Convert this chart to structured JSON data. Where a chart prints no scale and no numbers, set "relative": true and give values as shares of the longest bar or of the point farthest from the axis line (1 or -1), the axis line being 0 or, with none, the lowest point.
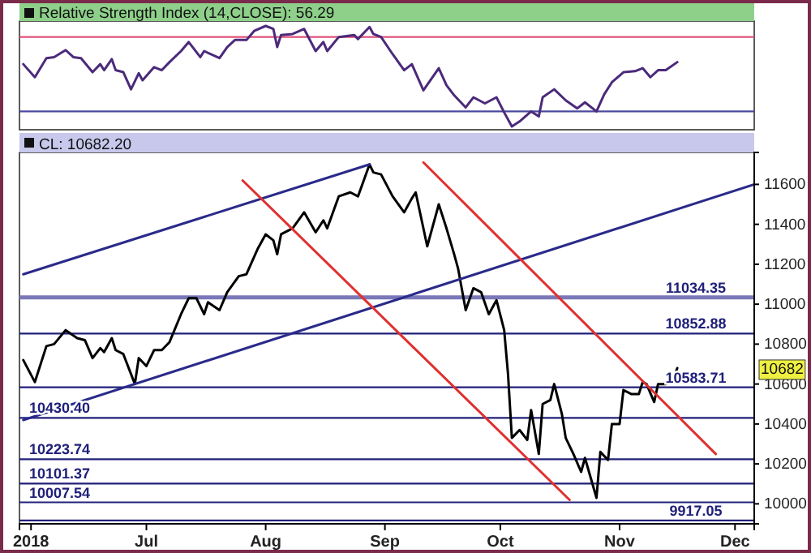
{
  "chart_data": [
    {
      "type": "line",
      "title": "Relative Strength Index (14,CLOSE): 56.29",
      "relative": true,
      "xlim": [
        "2018-05-29",
        "2018-12-06"
      ],
      "ref_lines": [
        {
          "axis": "y",
          "value": 0.89,
          "color": "#e0507a"
        },
        {
          "axis": "y",
          "value": 0.15,
          "color": "#4a4aa0"
        }
      ],
      "series": [
        {
          "color": "#4b2a7a",
          "x": [
            "2018-05-30",
            "2018-06-02",
            "2018-06-05",
            "2018-06-07",
            "2018-06-10",
            "2018-06-12",
            "2018-06-14",
            "2018-06-17",
            "2018-06-19",
            "2018-06-20",
            "2018-06-22",
            "2018-06-23",
            "2018-06-25",
            "2018-06-27",
            "2018-06-29",
            "2018-06-30",
            "2018-07-03",
            "2018-07-05",
            "2018-07-07",
            "2018-07-10",
            "2018-07-12",
            "2018-07-15",
            "2018-07-16",
            "2018-07-20",
            "2018-07-22",
            "2018-07-24",
            "2018-07-27",
            "2018-07-29",
            "2018-08-01",
            "2018-08-03",
            "2018-08-04",
            "2018-08-05",
            "2018-08-08",
            "2018-08-11",
            "2018-08-14",
            "2018-08-16",
            "2018-08-17",
            "2018-08-20",
            "2018-08-24",
            "2018-08-25",
            "2018-08-28",
            "2018-08-29",
            "2018-08-31",
            "2018-09-03",
            "2018-09-06",
            "2018-09-08",
            "2018-09-11",
            "2018-09-15",
            "2018-09-17",
            "2018-09-19",
            "2018-09-22",
            "2018-09-24",
            "2018-09-27",
            "2018-09-30",
            "2018-10-02",
            "2018-10-04",
            "2018-10-06",
            "2018-10-09",
            "2018-10-11",
            "2018-10-12",
            "2018-10-15",
            "2018-10-18",
            "2018-10-21",
            "2018-10-23",
            "2018-10-26",
            "2018-10-28",
            "2018-10-30",
            "2018-11-02",
            "2018-11-05",
            "2018-11-07",
            "2018-11-09",
            "2018-11-11",
            "2018-11-13",
            "2018-11-16"
          ],
          "values": [
            0.62,
            0.49,
            0.68,
            0.69,
            0.76,
            0.69,
            0.68,
            0.54,
            0.62,
            0.56,
            0.67,
            0.56,
            0.54,
            0.37,
            0.53,
            0.46,
            0.59,
            0.56,
            0.64,
            0.75,
            0.84,
            0.69,
            0.75,
            0.68,
            0.79,
            0.86,
            0.86,
            0.95,
            1,
            0.97,
            0.79,
            0.91,
            0.92,
            0.97,
            0.75,
            0.84,
            0.75,
            0.89,
            0.91,
            0.87,
            0.99,
            0.92,
            0.89,
            0.72,
            0.56,
            0.62,
            0.36,
            0.58,
            0.41,
            0.31,
            0.19,
            0.29,
            0.23,
            0.29,
            0.14,
            0,
            0.05,
            0.15,
            0.1,
            0.29,
            0.37,
            0.26,
            0.18,
            0.24,
            0.15,
            0.32,
            0.44,
            0.54,
            0.55,
            0.58,
            0.49,
            0.56,
            0.56,
            0.64
          ]
        }
      ]
    },
    {
      "type": "line",
      "title": "CL: 10682.20",
      "xlim": [
        "2018-05-29",
        "2018-12-06"
      ],
      "ylim": [
        9900,
        11760
      ],
      "xticks": [
        {
          "value": "2018-06-01",
          "label": "2018"
        },
        {
          "value": "2018-07-01",
          "label": "Jul"
        },
        {
          "value": "2018-08-01",
          "label": "Aug"
        },
        {
          "value": "2018-09-01",
          "label": "Sep"
        },
        {
          "value": "2018-10-01",
          "label": "Oct"
        },
        {
          "value": "2018-11-01",
          "label": "Nov"
        },
        {
          "value": "2018-12-01",
          "label": "Dec"
        }
      ],
      "yticks": [
        10000,
        10200,
        10400,
        10600,
        10800,
        11000,
        11200,
        11400,
        11600
      ],
      "annotations": [
        "10682"
      ],
      "ref_lines": [
        {
          "axis": "y",
          "value": 11034.35,
          "label": "11034.35",
          "color": "#7a78b8"
        },
        {
          "axis": "y",
          "value": 10852.88,
          "label": "10852.88",
          "color": "#20207a"
        },
        {
          "axis": "y",
          "value": 10583.71,
          "label": "10583.71",
          "color": "#20207a"
        },
        {
          "axis": "y",
          "value": 10430.4,
          "label": "10430.40",
          "color": "#20207a"
        },
        {
          "axis": "y",
          "value": 10223.74,
          "label": "10223.74",
          "color": "#20207a"
        },
        {
          "axis": "y",
          "value": 10101.37,
          "label": "10101.37",
          "color": "#20207a"
        },
        {
          "axis": "y",
          "value": 10007.54,
          "label": "10007.54",
          "color": "#20207a"
        },
        {
          "axis": "y",
          "value": 9917.05,
          "label": "9917.05",
          "color": "#20207a"
        }
      ],
      "series": [
        {
          "color": "#000000",
          "x": [
            "2018-05-30",
            "2018-06-02",
            "2018-06-05",
            "2018-06-07",
            "2018-06-10",
            "2018-06-13",
            "2018-06-15",
            "2018-06-17",
            "2018-06-19",
            "2018-06-20",
            "2018-06-22",
            "2018-06-23",
            "2018-06-25",
            "2018-06-28",
            "2018-06-29",
            "2018-07-01",
            "2018-07-03",
            "2018-07-05",
            "2018-07-07",
            "2018-07-10",
            "2018-07-12",
            "2018-07-14",
            "2018-07-16",
            "2018-07-17",
            "2018-07-20",
            "2018-07-22",
            "2018-07-25",
            "2018-07-27",
            "2018-07-30",
            "2018-08-01",
            "2018-08-03",
            "2018-08-04",
            "2018-08-05",
            "2018-08-08",
            "2018-08-11",
            "2018-08-14",
            "2018-08-16",
            "2018-08-17",
            "2018-08-20",
            "2018-08-23",
            "2018-08-25",
            "2018-08-28",
            "2018-08-29",
            "2018-08-31",
            "2018-09-03",
            "2018-09-06",
            "2018-09-08",
            "2018-09-09",
            "2018-09-12",
            "2018-09-15",
            "2018-09-17",
            "2018-09-19",
            "2018-09-20",
            "2018-09-22",
            "2018-09-24",
            "2018-09-26",
            "2018-09-28",
            "2018-09-30",
            "2018-10-02",
            "2018-10-03",
            "2018-10-04",
            "2018-10-06",
            "2018-10-08",
            "2018-10-09",
            "2018-10-11",
            "2018-10-12",
            "2018-10-14",
            "2018-10-15",
            "2018-10-17",
            "2018-10-18",
            "2018-10-20",
            "2018-10-22",
            "2018-10-23",
            "2018-10-26",
            "2018-10-27",
            "2018-10-29",
            "2018-10-30",
            "2018-11-01",
            "2018-11-02",
            "2018-11-04",
            "2018-11-06",
            "2018-11-07",
            "2018-11-08",
            "2018-11-10",
            "2018-11-11",
            "2018-11-13",
            "2018-11-15",
            "2018-11-16"
          ],
          "values": [
            10720,
            10610,
            10790,
            10800,
            10870,
            10830,
            10820,
            10730,
            10780,
            10760,
            10830,
            10770,
            10750,
            10600,
            10730,
            10690,
            10770,
            10770,
            10810,
            10950,
            11030,
            11030,
            10950,
            11010,
            10970,
            11060,
            11140,
            11150,
            11280,
            11350,
            11320,
            11250,
            11350,
            11380,
            11460,
            11360,
            11420,
            11380,
            11540,
            11560,
            11540,
            11700,
            11660,
            11650,
            11540,
            11460,
            11530,
            11560,
            11290,
            11500,
            11380,
            11250,
            11180,
            10970,
            11080,
            11060,
            10950,
            11020,
            10870,
            10650,
            10330,
            10370,
            10320,
            10470,
            10250,
            10500,
            10520,
            10600,
            10450,
            10330,
            10250,
            10160,
            10230,
            10030,
            10260,
            10220,
            10400,
            10400,
            10570,
            10550,
            10550,
            10610,
            10600,
            10510,
            10600,
            10600,
            10630,
            10680
          ]
        },
        {
          "type": "line",
          "color": "#2a2a8a",
          "x": [
            "2018-05-30",
            "2018-08-28"
          ],
          "values": [
            11150,
            11700
          ]
        },
        {
          "type": "line",
          "color": "#2a2a8a",
          "x": [
            "2018-05-30",
            "2018-12-06"
          ],
          "values": [
            10420,
            11600
          ]
        },
        {
          "type": "line",
          "color": "#e03030",
          "x": [
            "2018-07-26",
            "2018-10-19"
          ],
          "values": [
            11620,
            10020
          ]
        },
        {
          "type": "line",
          "color": "#e03030",
          "x": [
            "2018-09-11",
            "2018-11-26"
          ],
          "values": [
            11710,
            10250
          ]
        }
      ]
    }
  ]
}
